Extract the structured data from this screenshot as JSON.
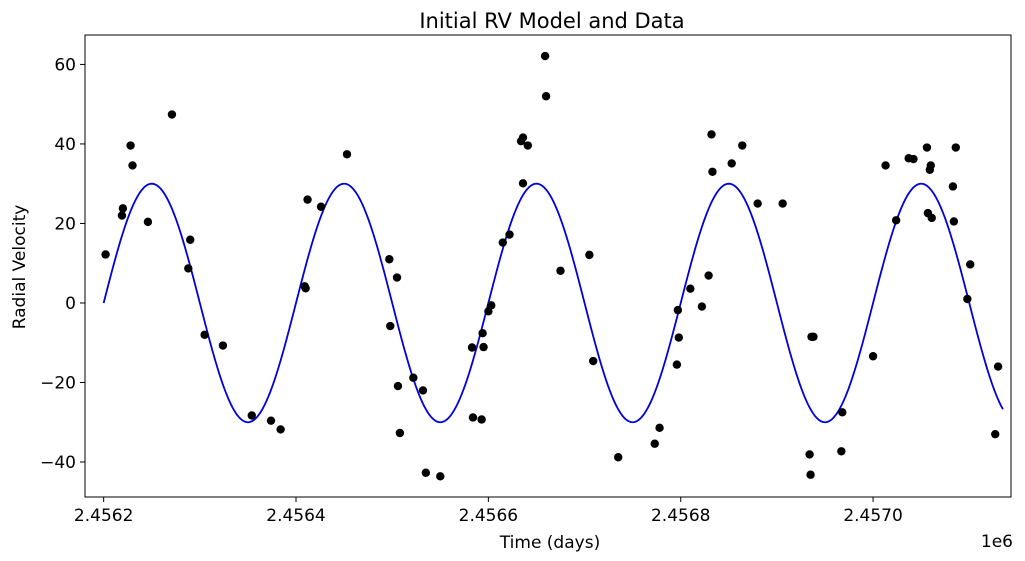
{
  "chart_data": {
    "type": "scatter",
    "title": "Initial RV Model and Data",
    "xlabel": "Time (days)",
    "ylabel": "Radial Velocity",
    "x_offset_label": "1e6",
    "xlim": [
      2456180.6,
      2457143.4
    ],
    "ylim": [
      -48.8,
      67.4
    ],
    "x_ticks": [
      2456200,
      2456400,
      2456600,
      2456800,
      2457000
    ],
    "x_tick_labels": [
      "2.4562",
      "2.4564",
      "2.4566",
      "2.4568",
      "2.4570"
    ],
    "y_ticks": [
      -40,
      -20,
      0,
      20,
      40,
      60
    ],
    "y_tick_labels": [
      "−40",
      "−20",
      "0",
      "20",
      "40",
      "60"
    ],
    "grid": false,
    "model": {
      "type": "line",
      "function": "sine",
      "amplitude": 30,
      "period": 200,
      "t0": 2456200,
      "x_range": [
        2456200,
        2457135
      ],
      "color": "#0000dd"
    },
    "points_color": "#000000",
    "points": [
      [
        2456202,
        12.2
      ],
      [
        2456219,
        22.0
      ],
      [
        2456220,
        23.8
      ],
      [
        2456228,
        39.6
      ],
      [
        2456230,
        34.6
      ],
      [
        2456246,
        20.4
      ],
      [
        2456271,
        47.4
      ],
      [
        2456288,
        8.7
      ],
      [
        2456290,
        15.9
      ],
      [
        2456305,
        -8.0
      ],
      [
        2456324,
        -10.7
      ],
      [
        2456354,
        -28.3
      ],
      [
        2456374,
        -29.6
      ],
      [
        2456384,
        -31.8
      ],
      [
        2456409,
        4.2
      ],
      [
        2456410,
        3.7
      ],
      [
        2456412,
        26.0
      ],
      [
        2456426,
        24.2
      ],
      [
        2456453,
        37.4
      ],
      [
        2456497,
        11.0
      ],
      [
        2456498,
        -5.8
      ],
      [
        2456505,
        6.4
      ],
      [
        2456506,
        -20.9
      ],
      [
        2456508,
        -32.7
      ],
      [
        2456522,
        -18.8
      ],
      [
        2456532,
        -22.0
      ],
      [
        2456535,
        -42.7
      ],
      [
        2456550,
        -43.6
      ],
      [
        2456583,
        -11.2
      ],
      [
        2456584,
        -28.8
      ],
      [
        2456593,
        -29.3
      ],
      [
        2456594,
        -7.6
      ],
      [
        2456595,
        -11.1
      ],
      [
        2456600,
        -2.1
      ],
      [
        2456603,
        -0.6
      ],
      [
        2456615,
        15.2
      ],
      [
        2456622,
        17.2
      ],
      [
        2456634,
        40.7
      ],
      [
        2456636,
        41.6
      ],
      [
        2456636,
        30.1
      ],
      [
        2456641,
        39.6
      ],
      [
        2456659,
        62.1
      ],
      [
        2456660,
        52.0
      ],
      [
        2456675,
        8.1
      ],
      [
        2456705,
        12.1
      ],
      [
        2456709,
        -14.6
      ],
      [
        2456735,
        -38.8
      ],
      [
        2456773,
        -35.4
      ],
      [
        2456778,
        -31.4
      ],
      [
        2456796,
        -15.5
      ],
      [
        2456797,
        -1.8
      ],
      [
        2456798,
        -8.7
      ],
      [
        2456810,
        3.6
      ],
      [
        2456822,
        -0.9
      ],
      [
        2456829,
        6.9
      ],
      [
        2456832,
        42.4
      ],
      [
        2456833,
        33.0
      ],
      [
        2456853,
        35.1
      ],
      [
        2456864,
        39.6
      ],
      [
        2456880,
        25.0
      ],
      [
        2456906,
        25.0
      ],
      [
        2456938,
        -8.5
      ],
      [
        2456936,
        -8.5
      ],
      [
        2456934,
        -38.1
      ],
      [
        2456935,
        -43.2
      ],
      [
        2456967,
        -37.3
      ],
      [
        2456968,
        -27.5
      ],
      [
        2457000,
        -13.4
      ],
      [
        2457013,
        34.6
      ],
      [
        2457024,
        20.8
      ],
      [
        2457037,
        36.4
      ],
      [
        2457042,
        36.2
      ],
      [
        2457056,
        39.1
      ],
      [
        2457057,
        22.6
      ],
      [
        2457059,
        33.5
      ],
      [
        2457060,
        34.6
      ],
      [
        2457061,
        21.4
      ],
      [
        2457083,
        29.3
      ],
      [
        2457084,
        20.5
      ],
      [
        2457086,
        39.1
      ],
      [
        2457098,
        1.0
      ],
      [
        2457101,
        9.7
      ],
      [
        2457127,
        -33.0
      ],
      [
        2457130,
        -16.0
      ]
    ]
  }
}
